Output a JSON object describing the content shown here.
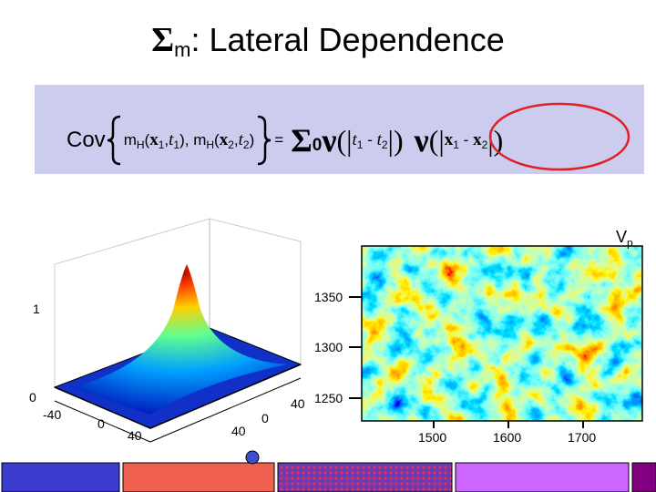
{
  "title": {
    "symbol": "Σ",
    "subscript": "m",
    "text": ": Lateral Dependence"
  },
  "formula": [
    "Cov",
    "m",
    "H",
    "(",
    "x",
    "1",
    ",",
    "t",
    "1",
    "), m",
    "H",
    "(",
    "x",
    "2",
    ",",
    "t",
    "2",
    ")",
    "=",
    "Σ",
    "0",
    "ν",
    "(",
    "|",
    "t",
    "1",
    " - ",
    "t",
    "2",
    "|",
    ")",
    "ν",
    "(",
    "|",
    "x",
    "1",
    " - ",
    "x",
    "2",
    "|",
    ")"
  ],
  "surface_plot": {
    "z_ticks": [
      "1",
      "0"
    ],
    "x_ticks": [
      "-40",
      "0",
      "40"
    ],
    "y_ticks": [
      "40",
      "0",
      "40"
    ]
  },
  "image_plot": {
    "label": "V",
    "label_subscript": "p",
    "y_ticks": [
      "1350",
      "1300",
      "1250"
    ],
    "x_ticks": [
      "1500",
      "1600",
      "1700"
    ]
  }
}
